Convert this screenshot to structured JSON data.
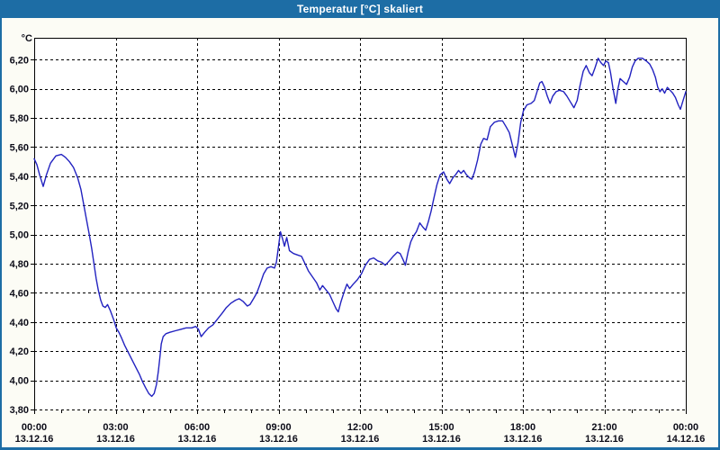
{
  "window": {
    "title": "Temperatur [°C] skaliert"
  },
  "colors": {
    "titlebar": "#1d6da5",
    "window_border": "#1d6da5",
    "content_bg": "#fcfcf5",
    "plot_bg": "#ffffff",
    "grid": "#000000",
    "axis": "#000000",
    "tick_text": "#0c0c18",
    "line": "#2222c0"
  },
  "chart_data": {
    "type": "line",
    "title": "Temperatur [°C] skaliert",
    "grid": {
      "style": "dashed",
      "horizontal": true,
      "vertical": true
    },
    "legend": "none",
    "y_axis": {
      "unit": "°C",
      "min": 3.8,
      "axis_top": 6.35,
      "tick_step": 0.2,
      "tick_values": [
        3.8,
        4.0,
        4.2,
        4.4,
        4.6,
        4.8,
        5.0,
        5.2,
        5.4,
        5.6,
        5.8,
        6.0,
        6.2
      ],
      "tick_labels": [
        "3,80",
        "4,00",
        "4,20",
        "4,40",
        "4,60",
        "4,80",
        "5,00",
        "5,20",
        "5,40",
        "5,60",
        "5,80",
        "6,00",
        "6,20"
      ]
    },
    "x_axis": {
      "range_hours": [
        0,
        24
      ],
      "minor_tick_every_hours": 1,
      "ticks": [
        {
          "hour": 0,
          "time": "00:00",
          "date": "13.12.16"
        },
        {
          "hour": 3,
          "time": "03:00",
          "date": "13.12.16"
        },
        {
          "hour": 6,
          "time": "06:00",
          "date": "13.12.16"
        },
        {
          "hour": 9,
          "time": "09:00",
          "date": "13.12.16"
        },
        {
          "hour": 12,
          "time": "12:00",
          "date": "13.12.16"
        },
        {
          "hour": 15,
          "time": "15:00",
          "date": "13.12.16"
        },
        {
          "hour": 18,
          "time": "18:00",
          "date": "13.12.16"
        },
        {
          "hour": 21,
          "time": "21:00",
          "date": "13.12.16"
        },
        {
          "hour": 24,
          "time": "00:00",
          "date": "14.12.16"
        }
      ]
    },
    "series": [
      {
        "name": "Temperatur",
        "color": "#2222c0",
        "points": [
          [
            0.0,
            5.52
          ],
          [
            0.1,
            5.48
          ],
          [
            0.2,
            5.41
          ],
          [
            0.33,
            5.33
          ],
          [
            0.45,
            5.41
          ],
          [
            0.6,
            5.49
          ],
          [
            0.8,
            5.54
          ],
          [
            1.0,
            5.55
          ],
          [
            1.15,
            5.53
          ],
          [
            1.3,
            5.5
          ],
          [
            1.45,
            5.46
          ],
          [
            1.6,
            5.39
          ],
          [
            1.72,
            5.31
          ],
          [
            1.83,
            5.2
          ],
          [
            1.93,
            5.1
          ],
          [
            2.03,
            5.0
          ],
          [
            2.12,
            4.9
          ],
          [
            2.2,
            4.8
          ],
          [
            2.28,
            4.7
          ],
          [
            2.36,
            4.62
          ],
          [
            2.45,
            4.55
          ],
          [
            2.53,
            4.51
          ],
          [
            2.62,
            4.5
          ],
          [
            2.7,
            4.52
          ],
          [
            2.8,
            4.48
          ],
          [
            2.92,
            4.42
          ],
          [
            3.02,
            4.36
          ],
          [
            3.12,
            4.33
          ],
          [
            3.22,
            4.29
          ],
          [
            3.33,
            4.24
          ],
          [
            3.44,
            4.2
          ],
          [
            3.55,
            4.16
          ],
          [
            3.66,
            4.12
          ],
          [
            3.77,
            4.08
          ],
          [
            3.88,
            4.04
          ],
          [
            3.99,
            3.99
          ],
          [
            4.1,
            3.95
          ],
          [
            4.22,
            3.91
          ],
          [
            4.33,
            3.89
          ],
          [
            4.42,
            3.91
          ],
          [
            4.5,
            3.97
          ],
          [
            4.57,
            4.06
          ],
          [
            4.63,
            4.16
          ],
          [
            4.68,
            4.25
          ],
          [
            4.75,
            4.3
          ],
          [
            4.85,
            4.32
          ],
          [
            5.0,
            4.33
          ],
          [
            5.2,
            4.34
          ],
          [
            5.4,
            4.35
          ],
          [
            5.6,
            4.36
          ],
          [
            5.8,
            4.36
          ],
          [
            5.95,
            4.37
          ],
          [
            6.05,
            4.35
          ],
          [
            6.15,
            4.3
          ],
          [
            6.28,
            4.33
          ],
          [
            6.42,
            4.36
          ],
          [
            6.58,
            4.38
          ],
          [
            6.75,
            4.42
          ],
          [
            6.92,
            4.46
          ],
          [
            7.08,
            4.5
          ],
          [
            7.25,
            4.53
          ],
          [
            7.42,
            4.55
          ],
          [
            7.55,
            4.56
          ],
          [
            7.7,
            4.54
          ],
          [
            7.85,
            4.51
          ],
          [
            7.95,
            4.52
          ],
          [
            8.08,
            4.56
          ],
          [
            8.2,
            4.6
          ],
          [
            8.32,
            4.66
          ],
          [
            8.45,
            4.73
          ],
          [
            8.58,
            4.77
          ],
          [
            8.72,
            4.78
          ],
          [
            8.85,
            4.77
          ],
          [
            8.92,
            4.81
          ],
          [
            9.0,
            4.92
          ],
          [
            9.07,
            5.02
          ],
          [
            9.15,
            4.97
          ],
          [
            9.22,
            4.92
          ],
          [
            9.3,
            4.98
          ],
          [
            9.4,
            4.89
          ],
          [
            9.55,
            4.87
          ],
          [
            9.7,
            4.86
          ],
          [
            9.85,
            4.85
          ],
          [
            9.95,
            4.81
          ],
          [
            10.1,
            4.75
          ],
          [
            10.25,
            4.71
          ],
          [
            10.4,
            4.67
          ],
          [
            10.52,
            4.62
          ],
          [
            10.62,
            4.65
          ],
          [
            10.75,
            4.62
          ],
          [
            10.88,
            4.59
          ],
          [
            11.0,
            4.54
          ],
          [
            11.12,
            4.49
          ],
          [
            11.2,
            4.47
          ],
          [
            11.3,
            4.54
          ],
          [
            11.42,
            4.61
          ],
          [
            11.52,
            4.66
          ],
          [
            11.62,
            4.63
          ],
          [
            11.75,
            4.66
          ],
          [
            11.9,
            4.69
          ],
          [
            12.05,
            4.73
          ],
          [
            12.2,
            4.79
          ],
          [
            12.35,
            4.83
          ],
          [
            12.5,
            4.84
          ],
          [
            12.65,
            4.82
          ],
          [
            12.8,
            4.81
          ],
          [
            12.93,
            4.79
          ],
          [
            13.08,
            4.82
          ],
          [
            13.22,
            4.85
          ],
          [
            13.38,
            4.88
          ],
          [
            13.48,
            4.87
          ],
          [
            13.58,
            4.83
          ],
          [
            13.67,
            4.79
          ],
          [
            13.77,
            4.88
          ],
          [
            13.87,
            4.95
          ],
          [
            13.97,
            4.99
          ],
          [
            14.08,
            5.02
          ],
          [
            14.2,
            5.08
          ],
          [
            14.32,
            5.05
          ],
          [
            14.42,
            5.03
          ],
          [
            14.52,
            5.09
          ],
          [
            14.62,
            5.16
          ],
          [
            14.72,
            5.25
          ],
          [
            14.83,
            5.34
          ],
          [
            14.95,
            5.41
          ],
          [
            15.08,
            5.43
          ],
          [
            15.2,
            5.38
          ],
          [
            15.3,
            5.35
          ],
          [
            15.42,
            5.39
          ],
          [
            15.52,
            5.41
          ],
          [
            15.63,
            5.44
          ],
          [
            15.72,
            5.42
          ],
          [
            15.82,
            5.44
          ],
          [
            15.92,
            5.41
          ],
          [
            16.03,
            5.39
          ],
          [
            16.12,
            5.38
          ],
          [
            16.22,
            5.43
          ],
          [
            16.33,
            5.51
          ],
          [
            16.45,
            5.62
          ],
          [
            16.55,
            5.66
          ],
          [
            16.68,
            5.65
          ],
          [
            16.8,
            5.74
          ],
          [
            16.95,
            5.77
          ],
          [
            17.1,
            5.78
          ],
          [
            17.25,
            5.78
          ],
          [
            17.38,
            5.74
          ],
          [
            17.5,
            5.7
          ],
          [
            17.62,
            5.61
          ],
          [
            17.72,
            5.53
          ],
          [
            17.82,
            5.63
          ],
          [
            17.92,
            5.77
          ],
          [
            18.02,
            5.85
          ],
          [
            18.15,
            5.89
          ],
          [
            18.3,
            5.9
          ],
          [
            18.42,
            5.92
          ],
          [
            18.52,
            5.98
          ],
          [
            18.62,
            6.04
          ],
          [
            18.7,
            6.05
          ],
          [
            18.8,
            6.01
          ],
          [
            18.9,
            5.95
          ],
          [
            19.0,
            5.9
          ],
          [
            19.1,
            5.95
          ],
          [
            19.22,
            5.98
          ],
          [
            19.35,
            5.99
          ],
          [
            19.5,
            5.98
          ],
          [
            19.62,
            5.95
          ],
          [
            19.75,
            5.91
          ],
          [
            19.88,
            5.87
          ],
          [
            20.0,
            5.92
          ],
          [
            20.1,
            6.02
          ],
          [
            20.22,
            6.12
          ],
          [
            20.33,
            6.16
          ],
          [
            20.45,
            6.11
          ],
          [
            20.55,
            6.09
          ],
          [
            20.65,
            6.14
          ],
          [
            20.77,
            6.21
          ],
          [
            20.87,
            6.18
          ],
          [
            20.97,
            6.16
          ],
          [
            21.05,
            6.19
          ],
          [
            21.15,
            6.18
          ],
          [
            21.23,
            6.11
          ],
          [
            21.32,
            6.0
          ],
          [
            21.42,
            5.9
          ],
          [
            21.5,
            6.0
          ],
          [
            21.58,
            6.07
          ],
          [
            21.7,
            6.05
          ],
          [
            21.82,
            6.03
          ],
          [
            21.93,
            6.08
          ],
          [
            22.03,
            6.15
          ],
          [
            22.13,
            6.19
          ],
          [
            22.25,
            6.21
          ],
          [
            22.4,
            6.21
          ],
          [
            22.55,
            6.19
          ],
          [
            22.67,
            6.17
          ],
          [
            22.78,
            6.13
          ],
          [
            22.88,
            6.08
          ],
          [
            22.97,
            6.01
          ],
          [
            23.05,
            5.98
          ],
          [
            23.13,
            6.0
          ],
          [
            23.22,
            5.97
          ],
          [
            23.32,
            6.01
          ],
          [
            23.42,
            5.99
          ],
          [
            23.52,
            5.97
          ],
          [
            23.62,
            5.94
          ],
          [
            23.72,
            5.89
          ],
          [
            23.8,
            5.86
          ],
          [
            23.9,
            5.92
          ],
          [
            24.0,
            5.98
          ]
        ]
      }
    ]
  }
}
